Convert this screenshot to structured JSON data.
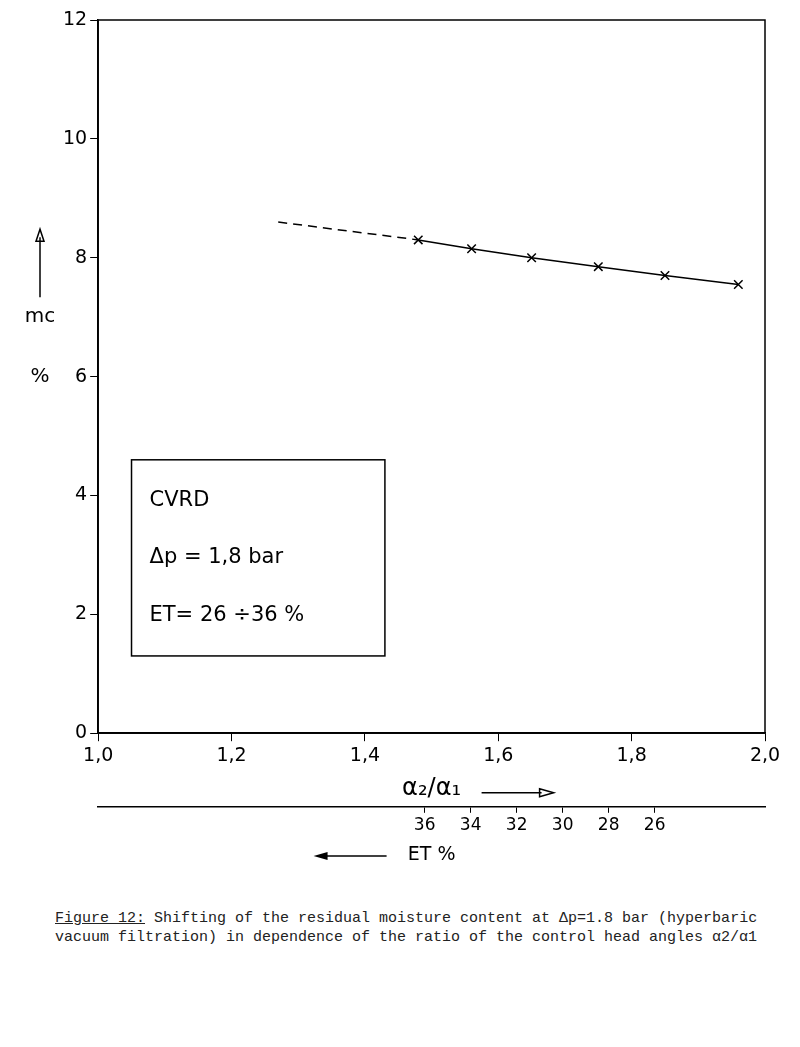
{
  "chart_data": {
    "type": "line",
    "xlabel": "α₂/α₁",
    "ylabel": [
      "mc",
      "%"
    ],
    "x2label": "ET %",
    "series": [
      {
        "x": [
          1.48,
          1.56,
          1.65,
          1.75,
          1.85,
          1.96
        ],
        "values": [
          8.3,
          8.15,
          8.0,
          7.85,
          7.7,
          7.55
        ],
        "color": "#000000",
        "marker": "x",
        "line_style": "solid"
      },
      {
        "x": [
          1.27,
          1.48
        ],
        "values": [
          8.6,
          8.3
        ],
        "color": "#000000",
        "marker": "none",
        "line_style": "dashed"
      }
    ],
    "xlim": [
      1.0,
      2.0
    ],
    "xticks": [
      {
        "value": 1.0,
        "label": "1,0"
      },
      {
        "value": 1.2,
        "label": "1,2"
      },
      {
        "value": 1.4,
        "label": "1,4"
      },
      {
        "value": 1.6,
        "label": "1,6"
      },
      {
        "value": 1.8,
        "label": "1,8"
      },
      {
        "value": 2.0,
        "label": "2,0"
      }
    ],
    "ylim": [
      0,
      12
    ],
    "yticks": [
      0,
      2,
      4,
      6,
      8,
      10,
      12
    ],
    "x2lim": [
      50.2,
      21.2
    ],
    "x2ticks": [
      36,
      34,
      32,
      30,
      28,
      26
    ],
    "annotation": [
      "CVRD",
      "Δp = 1,8 bar",
      "ET= 26 ÷36 %"
    ],
    "grid": false
  },
  "caption": {
    "label": "Figure 12:",
    "text": "Shifting of the residual moisture content at Δp=1.8 bar (hyperbaric vacuum filtration) in dependence of the ratio of the control head angles α2/α1"
  }
}
